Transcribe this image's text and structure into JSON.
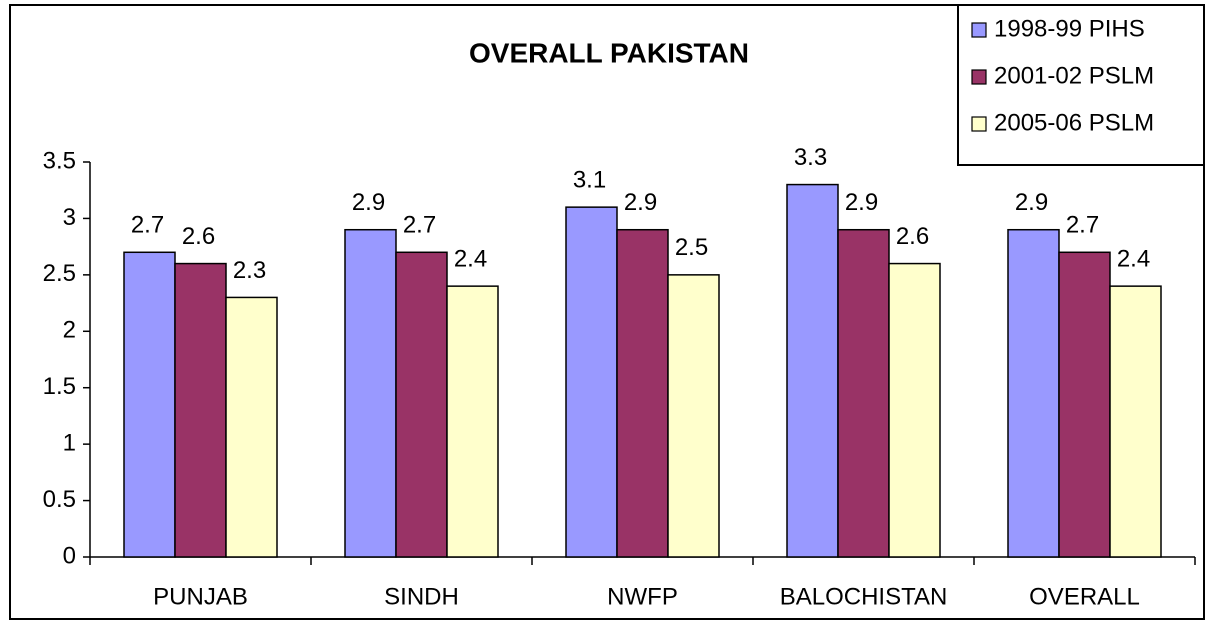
{
  "chart_data": {
    "type": "bar",
    "title": "OVERALL PAKISTAN",
    "categories": [
      "PUNJAB",
      "SINDH",
      "NWFP",
      "BALOCHISTAN",
      "OVERALL"
    ],
    "series": [
      {
        "name": "1998-99 PIHS",
        "color": "#9999ff",
        "values": [
          2.7,
          2.9,
          3.1,
          3.3,
          2.9
        ]
      },
      {
        "name": "2001-02 PSLM",
        "color": "#993366",
        "values": [
          2.6,
          2.7,
          2.9,
          2.9,
          2.7
        ]
      },
      {
        "name": "2005-06 PSLM",
        "color": "#ffffcc",
        "values": [
          2.3,
          2.4,
          2.5,
          2.6,
          2.4
        ]
      }
    ],
    "ylim": [
      0,
      3.5
    ],
    "yticks": [
      0,
      0.5,
      1,
      1.5,
      2,
      2.5,
      3,
      3.5
    ],
    "grid": false,
    "legend": "top-right"
  }
}
